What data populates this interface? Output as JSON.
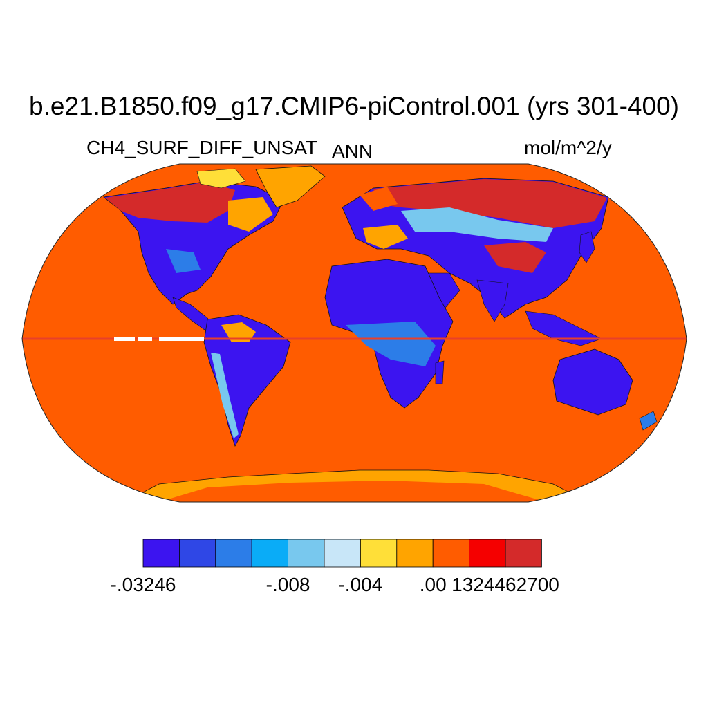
{
  "title": "b.e21.B1850.f09_g17.CMIP6-piControl.001 (yrs 301-400)",
  "variable": "CH4_SURF_DIFF_UNSAT",
  "period": "ANN",
  "units": "mol/m^2/y",
  "colors": {
    "ocean": "#ff5c00",
    "land_main": "#3c14f0",
    "equator_line": "#e8402a",
    "coast": "#111111"
  },
  "colorbar": {
    "colors": [
      "#3c14f0",
      "#2f47e6",
      "#2c7de8",
      "#0aacf7",
      "#78c8ee",
      "#c8e6f8",
      "#ffdf38",
      "#ffa400",
      "#ff5c00",
      "#f50000",
      "#d42a2a"
    ],
    "tick_labels": [
      "-.03246",
      "-.008",
      "-.004",
      ".00",
      "1324462700"
    ],
    "tick_boundary_index": [
      0,
      4,
      6,
      8,
      10
    ]
  },
  "map": {
    "projection": "Robinson",
    "regions": [
      {
        "name": "high-latitude north america",
        "value_class": "dark-red"
      },
      {
        "name": "siberia",
        "value_class": "dark-red"
      },
      {
        "name": "africa",
        "value_class": "blue"
      },
      {
        "name": "australia",
        "value_class": "blue"
      },
      {
        "name": "south america",
        "value_class": "blue"
      },
      {
        "name": "antarctica",
        "value_class": "orange"
      }
    ]
  }
}
